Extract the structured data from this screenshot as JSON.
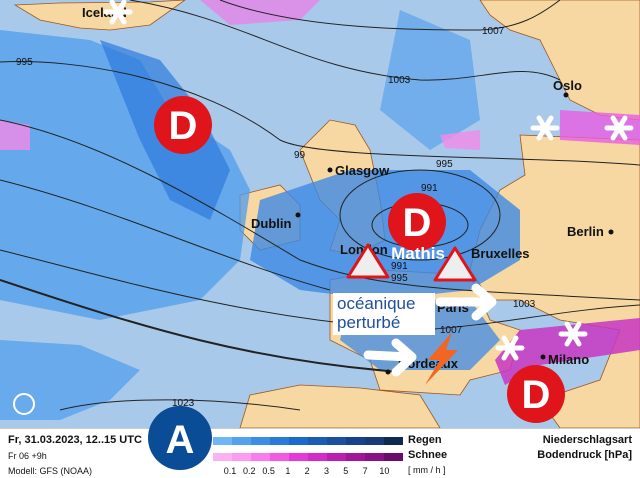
{
  "map": {
    "cities": [
      "Iceland",
      "Oslo",
      "Glasgow",
      "Dublin",
      "London",
      "Bruxelles",
      "Berlin",
      "Paris",
      "Milano",
      "Bordeaux"
    ],
    "isobar_labels": [
      "995",
      "1007",
      "1003",
      "995",
      "991",
      "991",
      "995",
      "1003",
      "1007",
      "1023",
      "99"
    ],
    "lows": [
      "D",
      "D",
      "D"
    ],
    "high": "A",
    "storm_name": "Mathis",
    "weather_type": "océanique perturbé",
    "colors": {
      "sea": "#a9c9ea",
      "land": "#f8d8a2",
      "low": "#e0141b",
      "high": "#0b4c96"
    }
  },
  "legend": {
    "date": "Fr, 31.03.2023, 12..15 UTC",
    "run": "Fr 06 +9h",
    "model": "Modell: GFS (NOAA)",
    "rain_label": "Regen",
    "snow_label": "Schnee",
    "unit": "[ mm / h ]",
    "ticks": [
      "0.1",
      "0.2",
      "0.5",
      "1",
      "2",
      "3",
      "5",
      "7",
      "10"
    ],
    "title1": "Niederschlagsart",
    "title2": "Bodendruck [hPa]",
    "rain_colors": [
      "#6fb6f6",
      "#52a2ee",
      "#3a8ee6",
      "#2a7ad9",
      "#1c6ac9",
      "#1a5cb6",
      "#1a4fa2",
      "#16418c",
      "#163c73",
      "#0e2a4e"
    ],
    "snow_colors": [
      "#fcb2f2",
      "#fb9cf0",
      "#f87cec",
      "#f25ae6",
      "#e33bda",
      "#d12cc9",
      "#b91fb1",
      "#a0169a",
      "#881186",
      "#6c0b6b"
    ]
  }
}
